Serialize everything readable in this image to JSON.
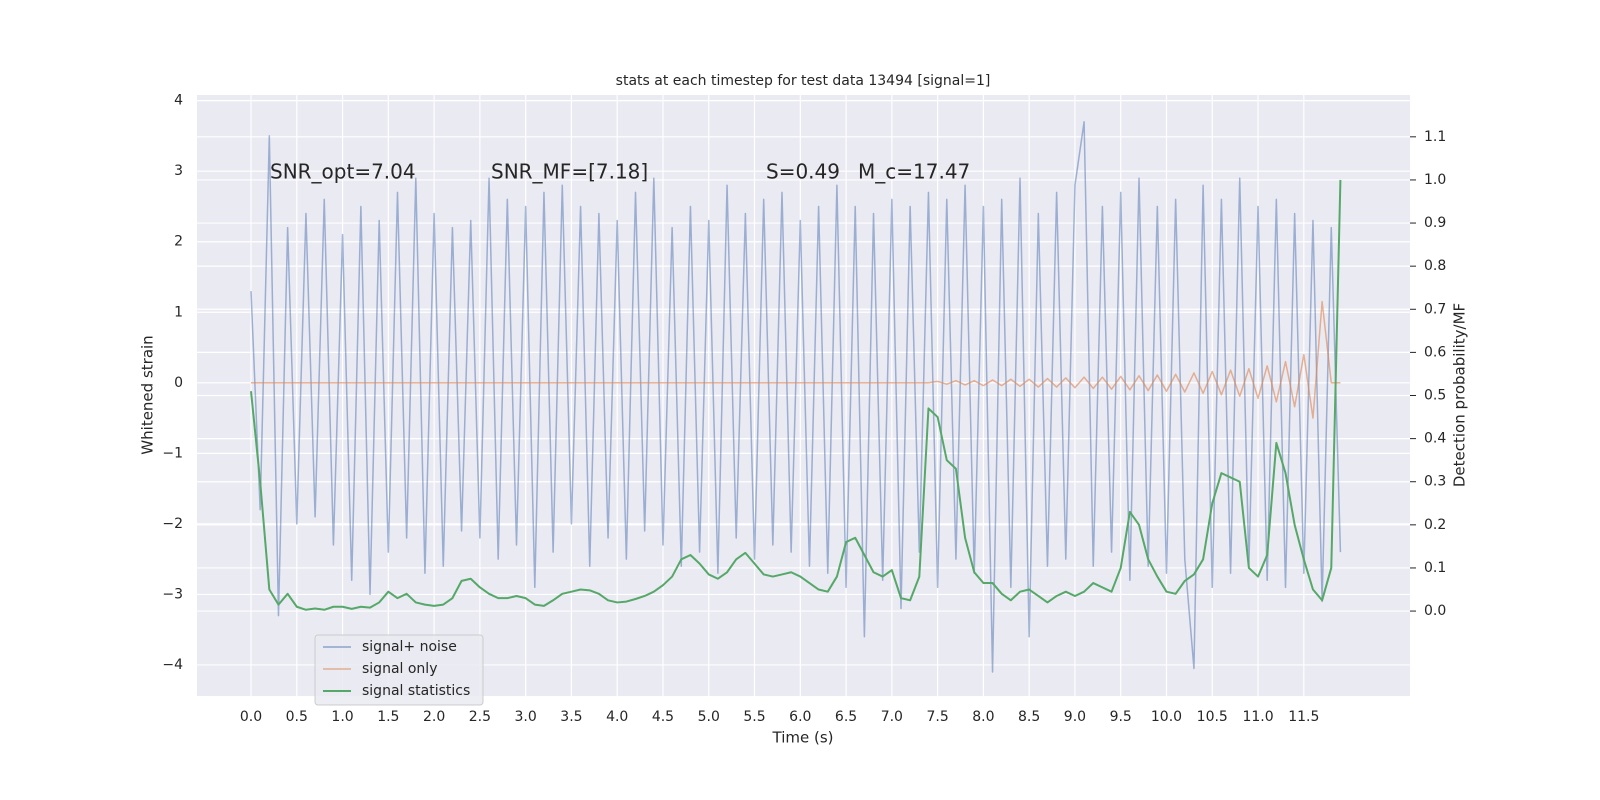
{
  "chart_data": {
    "type": "line",
    "title": "stats at each timestep for test data 13494 [signal=1]",
    "xlabel": "Time (s)",
    "ylabel": "Whitened strain",
    "y2label": "Detection probability/MF",
    "annotations": [
      "SNR_opt=7.04",
      "SNR_MF=[7.18]",
      "S=0.49",
      "M_c=17.47"
    ],
    "x": [
      0,
      0.1,
      0.2,
      0.3,
      0.4,
      0.5,
      0.6,
      0.7,
      0.8,
      0.9,
      1,
      1.1,
      1.2,
      1.3,
      1.4,
      1.5,
      1.6,
      1.7,
      1.8,
      1.9,
      2,
      2.1,
      2.2,
      2.3,
      2.4,
      2.5,
      2.6,
      2.7,
      2.8,
      2.9,
      3,
      3.1,
      3.2,
      3.3,
      3.4,
      3.5,
      3.6,
      3.7,
      3.8,
      3.9,
      4,
      4.1,
      4.2,
      4.3,
      4.4,
      4.5,
      4.6,
      4.7,
      4.8,
      4.9,
      5,
      5.1,
      5.2,
      5.3,
      5.4,
      5.5,
      5.6,
      5.7,
      5.8,
      5.9,
      6,
      6.1,
      6.2,
      6.3,
      6.4,
      6.5,
      6.6,
      6.7,
      6.8,
      6.9,
      7,
      7.1,
      7.2,
      7.3,
      7.4,
      7.5,
      7.6,
      7.7,
      7.8,
      7.9,
      8,
      8.1,
      8.2,
      8.3,
      8.4,
      8.5,
      8.6,
      8.7,
      8.8,
      8.9,
      9,
      9.1,
      9.2,
      9.3,
      9.4,
      9.5,
      9.6,
      9.7,
      9.8,
      9.9,
      10,
      10.1,
      10.2,
      10.3,
      10.4,
      10.5,
      10.6,
      10.7,
      10.8,
      10.9,
      11,
      11.1,
      11.2,
      11.3,
      11.4,
      11.5,
      11.6,
      11.7,
      11.8,
      11.9
    ],
    "series": [
      {
        "name": "signal+ noise",
        "color": "#4c72b0",
        "values": [
          1.3,
          -1.8,
          3.5,
          -3.3,
          2.2,
          -2.0,
          2.4,
          -1.9,
          2.6,
          -2.3,
          2.1,
          -2.8,
          2.5,
          -3.0,
          2.3,
          -2.4,
          2.7,
          -2.2,
          2.9,
          -2.7,
          2.4,
          -2.6,
          2.2,
          -2.1,
          2.3,
          -2.2,
          2.9,
          -2.5,
          2.6,
          -2.3,
          2.5,
          -2.9,
          2.7,
          -2.4,
          2.8,
          -2.0,
          2.5,
          -2.6,
          2.4,
          -2.2,
          2.3,
          -2.5,
          2.7,
          -2.1,
          2.9,
          -2.3,
          2.2,
          -2.6,
          2.5,
          -2.4,
          2.3,
          -2.7,
          2.8,
          -2.2,
          2.4,
          -2.5,
          2.6,
          -2.3,
          2.7,
          -2.4,
          2.3,
          -2.6,
          2.5,
          -2.7,
          2.8,
          -2.9,
          2.5,
          -3.6,
          2.4,
          -2.8,
          2.6,
          -3.2,
          2.5,
          -2.4,
          2.7,
          -2.9,
          2.6,
          -2.5,
          2.8,
          -2.7,
          2.5,
          -4.1,
          2.6,
          -2.9,
          2.9,
          -3.6,
          2.4,
          -2.6,
          2.7,
          -2.5,
          2.8,
          3.7,
          -2.6,
          2.5,
          -2.4,
          2.7,
          -2.8,
          2.9,
          -2.6,
          2.5,
          -2.7,
          2.6,
          -2.5,
          -4.05,
          2.8,
          -2.9,
          2.6,
          -2.7,
          2.9,
          -2.6,
          2.5,
          -2.8,
          2.6,
          -2.9,
          2.4,
          -2.7,
          2.3,
          -3.1,
          2.2,
          -2.4
        ]
      },
      {
        "name": "signal only",
        "color": "#dd8452",
        "values": [
          0,
          0,
          0,
          0,
          0,
          0,
          0,
          0,
          0,
          0,
          0,
          0,
          0,
          0,
          0,
          0,
          0,
          0,
          0,
          0,
          0,
          0,
          0,
          0,
          0,
          0,
          0,
          0,
          0,
          0,
          0,
          0,
          0,
          0,
          0,
          0,
          0,
          0,
          0,
          0,
          0,
          0,
          0,
          0,
          0,
          0,
          0,
          0,
          0,
          0,
          0,
          0,
          0,
          0,
          0,
          0,
          0,
          0,
          0,
          0,
          0,
          0,
          0,
          0,
          0,
          0,
          0,
          0,
          0,
          0,
          0,
          0,
          0,
          0,
          0,
          0.02,
          -0.02,
          0.03,
          -0.03,
          0.03,
          -0.04,
          0.04,
          -0.04,
          0.05,
          -0.05,
          0.05,
          -0.06,
          0.06,
          -0.06,
          0.07,
          -0.07,
          0.08,
          -0.08,
          0.08,
          -0.09,
          0.09,
          -0.1,
          0.1,
          -0.11,
          0.11,
          -0.12,
          0.12,
          -0.13,
          0.14,
          -0.15,
          0.16,
          -0.17,
          0.18,
          -0.19,
          0.2,
          -0.22,
          0.24,
          -0.27,
          0.3,
          -0.34,
          0.4,
          -0.5,
          1.15,
          0,
          0
        ]
      },
      {
        "name": "signal statistics",
        "color": "#55a868",
        "axis": "y2",
        "values": [
          0.51,
          0.3,
          0.05,
          0.015,
          0.04,
          0.01,
          0.003,
          0.006,
          0.003,
          0.01,
          0.01,
          0.005,
          0.01,
          0.008,
          0.02,
          0.045,
          0.03,
          0.04,
          0.02,
          0.015,
          0.012,
          0.015,
          0.03,
          0.07,
          0.075,
          0.055,
          0.04,
          0.03,
          0.03,
          0.035,
          0.03,
          0.015,
          0.012,
          0.025,
          0.04,
          0.045,
          0.05,
          0.048,
          0.04,
          0.025,
          0.02,
          0.022,
          0.028,
          0.035,
          0.045,
          0.06,
          0.08,
          0.12,
          0.13,
          0.11,
          0.085,
          0.075,
          0.09,
          0.12,
          0.135,
          0.11,
          0.085,
          0.08,
          0.085,
          0.09,
          0.08,
          0.065,
          0.05,
          0.045,
          0.08,
          0.16,
          0.17,
          0.13,
          0.09,
          0.08,
          0.095,
          0.03,
          0.025,
          0.08,
          0.47,
          0.45,
          0.35,
          0.33,
          0.17,
          0.09,
          0.065,
          0.065,
          0.04,
          0.025,
          0.045,
          0.05,
          0.035,
          0.02,
          0.035,
          0.045,
          0.035,
          0.045,
          0.065,
          0.055,
          0.045,
          0.1,
          0.23,
          0.2,
          0.12,
          0.08,
          0.045,
          0.04,
          0.07,
          0.085,
          0.12,
          0.25,
          0.32,
          0.31,
          0.3,
          0.1,
          0.08,
          0.13,
          0.39,
          0.32,
          0.2,
          0.12,
          0.05,
          0.025,
          0.1,
          1.0
        ]
      }
    ],
    "xlim": [
      -0.59,
      12.66
    ],
    "ylim": [
      -4.44,
      4.08
    ],
    "y2lim": [
      -0.197,
      1.197
    ],
    "xticks": [
      {
        "value": 0,
        "label": "0.0"
      },
      0.5,
      {
        "value": 1,
        "label": "1.0"
      },
      1.5,
      {
        "value": 2,
        "label": "2.0"
      },
      2.5,
      {
        "value": 3,
        "label": "3.0"
      },
      3.5,
      {
        "value": 4,
        "label": "4.0"
      },
      4.5,
      {
        "value": 5,
        "label": "5.0"
      },
      5.5,
      {
        "value": 6,
        "label": "6.0"
      },
      6.5,
      {
        "value": 7,
        "label": "7.0"
      },
      7.5,
      {
        "value": 8,
        "label": "8.0"
      },
      8.5,
      {
        "value": 9,
        "label": "9.0"
      },
      9.5,
      {
        "value": 10,
        "label": "10.0"
      },
      10.5,
      {
        "value": 11,
        "label": "11.0"
      },
      11.5
    ],
    "yticks": [
      {
        "value": -4,
        "label": "−4"
      },
      {
        "value": -3,
        "label": "−3"
      },
      {
        "value": -2,
        "label": "−2"
      },
      {
        "value": -1,
        "label": "−1"
      },
      0,
      1,
      2,
      3,
      4
    ],
    "y2ticks": [
      {
        "value": 0,
        "label": "0.0"
      },
      0.1,
      0.2,
      0.3,
      0.4,
      0.5,
      0.6,
      0.7,
      0.8,
      0.9,
      {
        "value": 1,
        "label": "1.0"
      },
      1.1
    ],
    "grid": true,
    "legend": "lower left"
  }
}
